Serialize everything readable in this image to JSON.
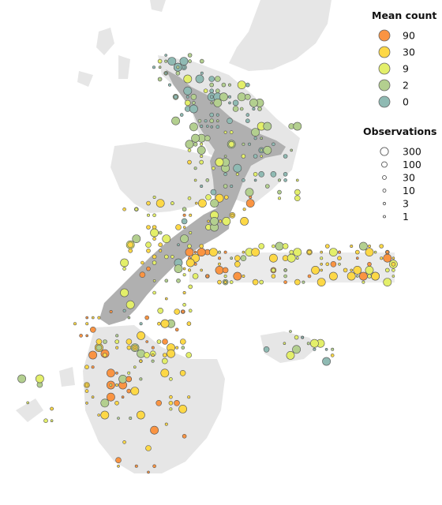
{
  "map": {
    "land_color": "#e6e6e6",
    "focus_land_color": "#b0b0b0",
    "point_stroke": "#555555"
  },
  "legend_mean_count": {
    "title": "Mean count",
    "items": [
      {
        "label": "90",
        "color": "#fa9442"
      },
      {
        "label": "30",
        "color": "#fdd846"
      },
      {
        "label": "9",
        "color": "#e3ef6a"
      },
      {
        "label": "2",
        "color": "#b3cf8f"
      },
      {
        "label": "0",
        "color": "#8fbab3"
      }
    ]
  },
  "legend_observations": {
    "title": "Observations",
    "items": [
      {
        "label": "300",
        "value": 300
      },
      {
        "label": "100",
        "value": 100
      },
      {
        "label": "30",
        "value": 30
      },
      {
        "label": "10",
        "value": 10
      },
      {
        "label": "3",
        "value": 3
      },
      {
        "label": "1",
        "value": 1
      }
    ]
  }
}
